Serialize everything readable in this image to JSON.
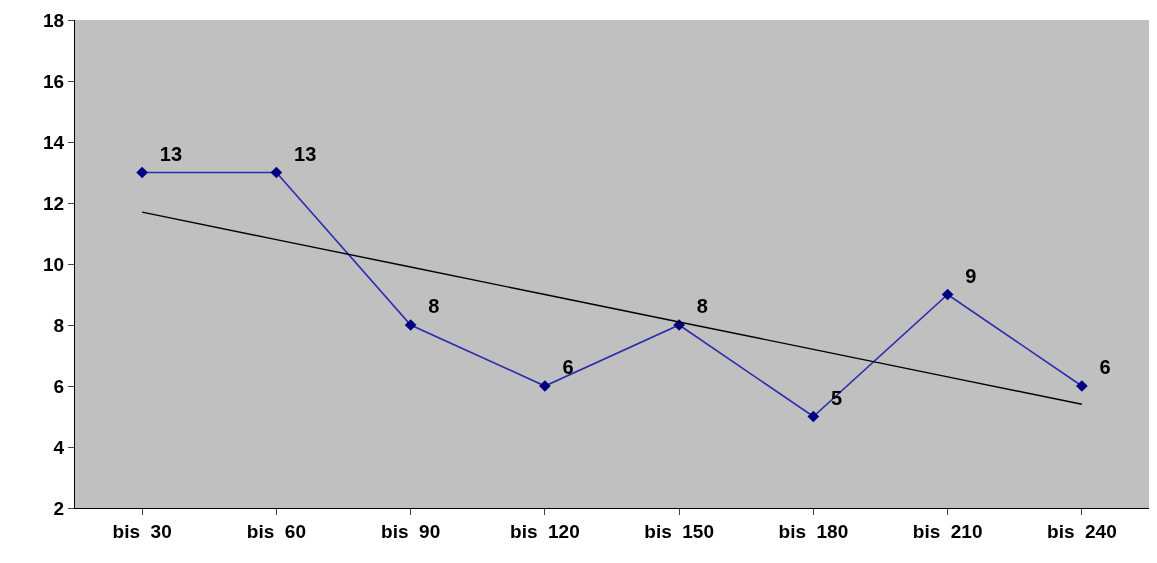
{
  "chart_data": {
    "type": "line",
    "categories": [
      "bis 30",
      "bis 60",
      "bis 90",
      "bis 120",
      "bis 150",
      "bis 180",
      "bis 210",
      "bis 240"
    ],
    "series": [
      {
        "color": "#2b2bb0",
        "values": [
          13,
          13,
          8,
          6,
          8,
          5,
          9,
          6
        ],
        "value_labels": [
          "13",
          "13",
          "8",
          "6",
          "8",
          "5",
          "9",
          "6"
        ],
        "marker": "diamond"
      },
      {
        "color": "#000000",
        "values": [
          11.7,
          10.8,
          9.9,
          9.0,
          8.1,
          7.2,
          6.3,
          5.4
        ],
        "marker": "none"
      }
    ],
    "ylim": [
      2,
      18
    ],
    "yticks": [
      2,
      4,
      6,
      8,
      10,
      12,
      14,
      16,
      18
    ],
    "grid": false
  }
}
